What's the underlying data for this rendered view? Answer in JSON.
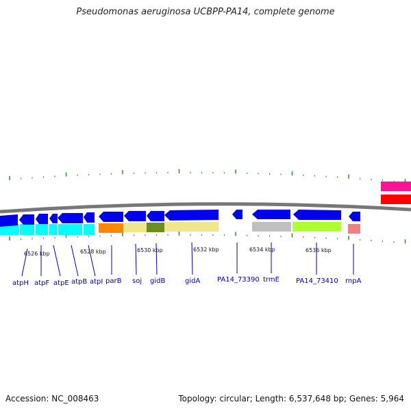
{
  "header": {
    "title": "Pseudomonas aeruginosa UCBPP-PA14, complete genome"
  },
  "footer": {
    "accession": "Accession: NC_008463",
    "topology": "Topology: circular; Length: 6,537,648 bp; Genes: 5,964"
  },
  "colors": {
    "backbone": "#777777",
    "tick": "#2e8b2e",
    "gene_label": "#0000aa",
    "forward_gene": "#0000ee",
    "cyan_block": "#00ffff",
    "orange_block": "#ff8800",
    "khaki_block": "#f0e68c",
    "olive_block": "#6b8e23",
    "gray_block": "#c0c0c0",
    "green_block": "#adff2f",
    "pink_block": "#f08080",
    "magenta_block": "#ff1493",
    "red_block": "#ff0000"
  },
  "scale_labels": [
    "6526 kbp",
    "6528 kbp",
    "6530 kbp",
    "6532 kbp",
    "6534 kbp",
    "6536 kbp"
  ],
  "genes": [
    "atpH",
    "atpF",
    "atpE",
    "atpB",
    "atpI",
    "parB",
    "soj",
    "gidB",
    "gidA",
    "PA14_73390",
    "trmE",
    "PA14_73410",
    "rnpA"
  ]
}
